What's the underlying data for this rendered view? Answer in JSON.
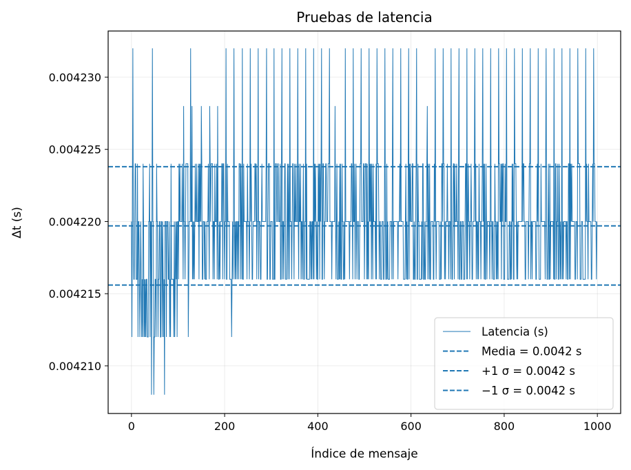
{
  "chart_data": {
    "type": "line",
    "title": "Pruebas de latencia",
    "xlabel": "Índice de mensaje",
    "ylabel": "Δt (s)",
    "xlim": [
      -50,
      1050
    ],
    "ylim": [
      0.0042067,
      0.0042332
    ],
    "xticks": [
      0,
      200,
      400,
      600,
      800,
      1000
    ],
    "xtick_labels": [
      "0",
      "200",
      "400",
      "600",
      "800",
      "1000"
    ],
    "yticks": [
      0.00421,
      0.004215,
      0.00422,
      0.004225,
      0.00423
    ],
    "ytick_labels": [
      "0.004210",
      "0.004215",
      "0.004220",
      "0.004225",
      "0.004230"
    ],
    "grid": true,
    "legend_position": "lower-right",
    "series": [
      {
        "name": "Latencia (s)",
        "style": "solid",
        "color": "#1f77b4",
        "x_range": [
          0,
          999
        ],
        "levels": [
          0.004208,
          0.004212,
          0.004216,
          0.00422,
          0.004224,
          0.004228,
          0.004232
        ],
        "dominant_levels": [
          0.004216,
          0.00422,
          0.004224
        ],
        "spikes_to_0_004232": [
          3,
          45,
          127,
          203,
          220,
          238,
          255,
          272,
          290,
          306,
          323,
          340,
          357,
          374,
          391,
          408,
          425,
          459,
          476,
          493,
          510,
          527,
          544,
          561,
          578,
          595,
          612,
          652,
          669,
          686,
          703,
          720,
          737,
          754,
          771,
          788,
          805,
          822,
          839,
          856,
          873,
          890,
          907,
          924,
          941,
          958,
          975,
          992
        ],
        "spikes_to_0_004228": [
          112,
          130,
          150,
          168,
          185,
          437,
          635
        ],
        "dips_to_0_004212": [
          14,
          18,
          22,
          27,
          31,
          36,
          40,
          49,
          53,
          57,
          62,
          66,
          75,
          84,
          93,
          98,
          122,
          215
        ],
        "dips_to_0_004208": [
          43,
          48,
          71
        ]
      },
      {
        "name": "Media = 0.0042 s",
        "style": "dashed",
        "color": "#1f77b4",
        "value": 0.0042197
      },
      {
        "name": "+1 σ = 0.0042 s",
        "style": "dashed",
        "color": "#1f77b4",
        "value": 0.0042238
      },
      {
        "name": "−1 σ = 0.0042 s",
        "style": "dashed",
        "color": "#1f77b4",
        "value": 0.0042156
      }
    ]
  }
}
